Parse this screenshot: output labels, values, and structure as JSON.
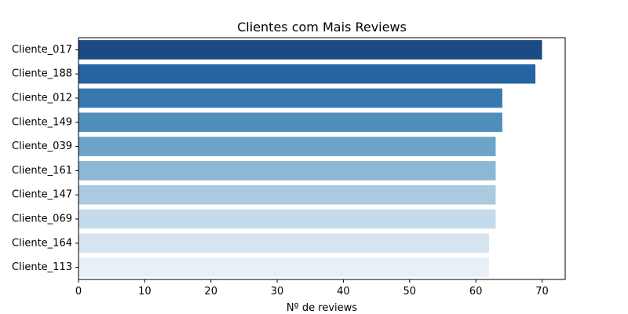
{
  "chart_data": {
    "type": "bar",
    "orientation": "horizontal",
    "title": "Clientes com Mais Reviews",
    "xlabel": "Nº de reviews",
    "ylabel": "",
    "xlim": [
      0,
      73.5
    ],
    "xticks": [
      0,
      10,
      20,
      30,
      40,
      50,
      60,
      70
    ],
    "grid": false,
    "categories": [
      "Cliente_017",
      "Cliente_188",
      "Cliente_012",
      "Cliente_149",
      "Cliente_039",
      "Cliente_161",
      "Cliente_147",
      "Cliente_069",
      "Cliente_164",
      "Cliente_113"
    ],
    "values": [
      70,
      69,
      64,
      64,
      63,
      63,
      63,
      63,
      62,
      62
    ],
    "colors": [
      "#1c4b84",
      "#2663a3",
      "#3878b0",
      "#4f8fbb",
      "#6da5c9",
      "#8bb8d2",
      "#a9cadf",
      "#c4dbec",
      "#d6e4f0",
      "#e7f0f8"
    ]
  }
}
